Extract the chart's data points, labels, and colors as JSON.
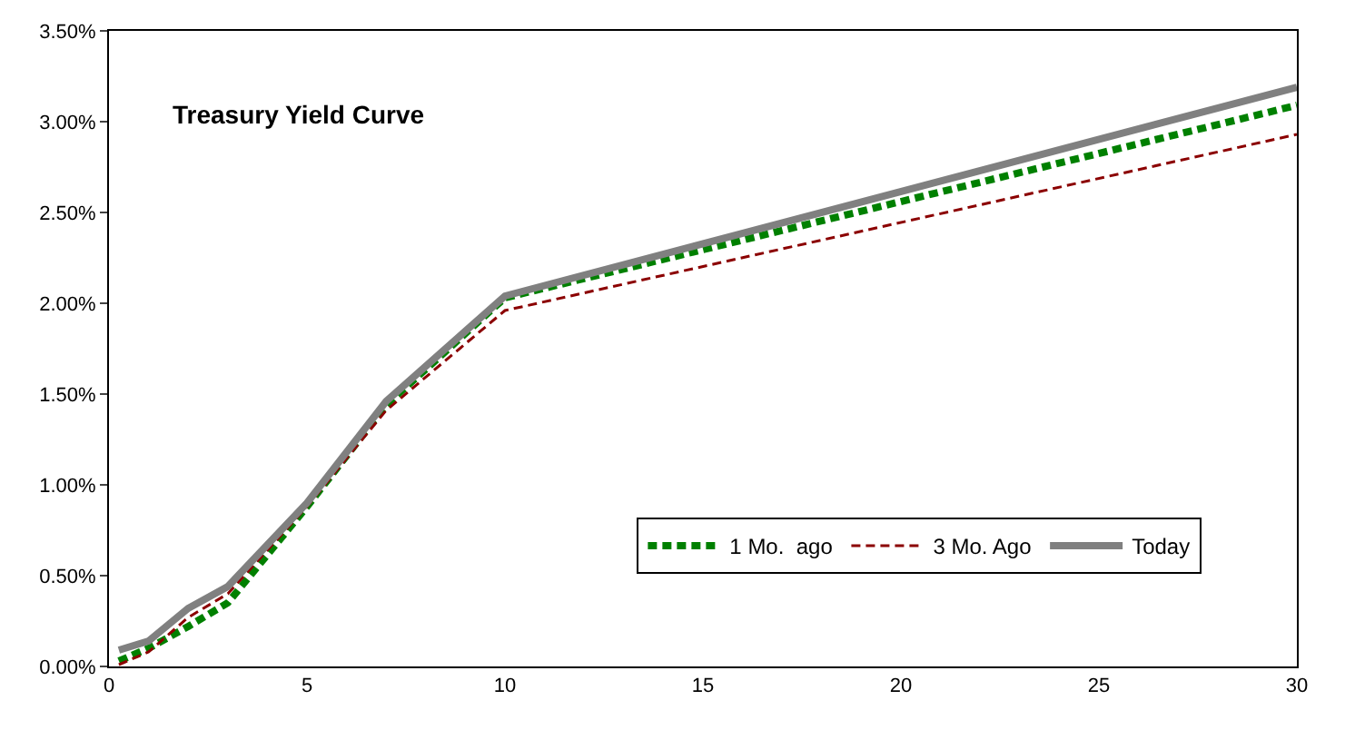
{
  "chart_data": {
    "type": "line",
    "title": "Treasury Yield Curve",
    "x": [
      0.25,
      1,
      2,
      3,
      5,
      7,
      10,
      30
    ],
    "series": [
      {
        "name": "1 Mo.  ago",
        "color": "#008000",
        "line_style": "dashed",
        "values": [
          0.03,
          0.1,
          0.22,
          0.35,
          0.88,
          1.44,
          2.03,
          3.09
        ]
      },
      {
        "name": "3 Mo. Ago",
        "color": "#8b0000",
        "line_style": "dashed",
        "values": [
          0.01,
          0.08,
          0.27,
          0.4,
          0.88,
          1.41,
          1.96,
          2.93
        ]
      },
      {
        "name": "Today",
        "color": "#808080",
        "line_style": "solid",
        "values": [
          0.09,
          0.14,
          0.32,
          0.44,
          0.9,
          1.46,
          2.04,
          3.19
        ]
      }
    ],
    "xlim": [
      0,
      30
    ],
    "xticks": [
      0,
      5,
      10,
      15,
      20,
      25,
      30
    ],
    "ylim": [
      0,
      3.5
    ],
    "yticks": [
      {
        "value": 0,
        "label": "0.00%"
      },
      {
        "value": 0.5,
        "label": "0.50%"
      },
      {
        "value": 1,
        "label": "1.00%"
      },
      {
        "value": 1.5,
        "label": "1.50%"
      },
      {
        "value": 2,
        "label": "2.00%"
      },
      {
        "value": 2.5,
        "label": "2.50%"
      },
      {
        "value": 3,
        "label": "3.00%"
      },
      {
        "value": 3.5,
        "label": "3.50%"
      }
    ],
    "grid": false,
    "legend": "bottom right",
    "marker": "none"
  }
}
